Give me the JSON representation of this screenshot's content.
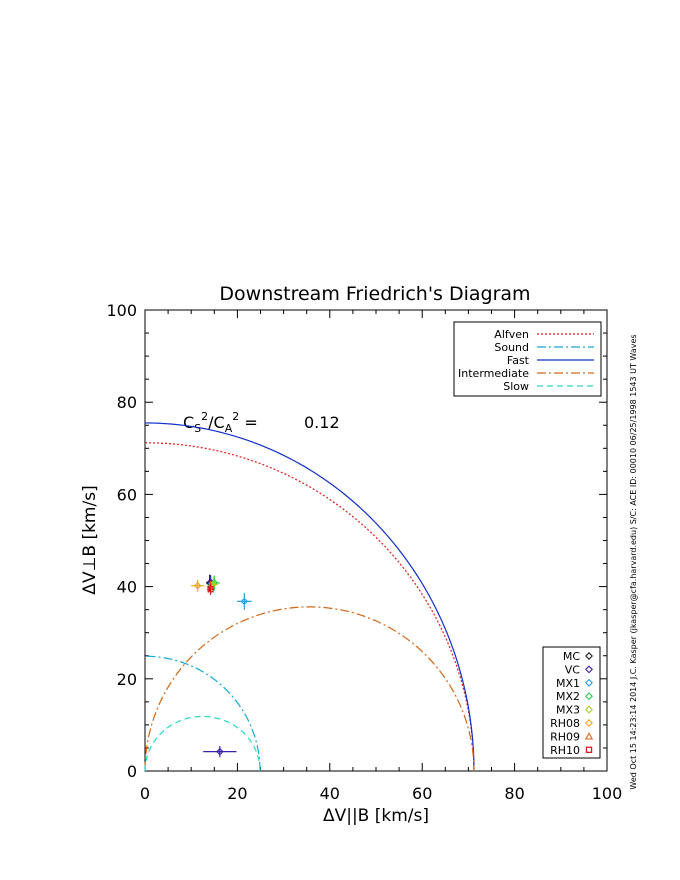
{
  "chart_data": {
    "type": "line",
    "title": "Downstream Friedrich's Diagram",
    "xlabel": "ΔV||B [km/s]",
    "ylabel": "ΔV⊥B [km/s]",
    "xlim": [
      0,
      100
    ],
    "ylim": [
      0,
      100
    ],
    "xticks": [
      "0",
      "20",
      "40",
      "60",
      "80",
      "100"
    ],
    "yticks": [
      "0",
      "20",
      "40",
      "60",
      "80",
      "100"
    ],
    "grid": false,
    "legend_position": "top-right",
    "ratio_label": {
      "text": "C_S^2/C_A^2 =",
      "value": "0.12"
    },
    "side_note": "Wed Oct 15 14:23:14 2014   J.C. Kasper (jkasper@cfa.harvard.edu)   S/C: ACE  ID: 00010 06/25/1998   1543 UT Waves",
    "params": {
      "alfven_speed_kms": 71.2,
      "sound_speed_kms": 24.9
    },
    "curves": [
      {
        "name": "Alfven",
        "color": "#e01c1c",
        "dash": "2,2"
      },
      {
        "name": "Sound",
        "color": "#14a8d8",
        "dash": "9,3,2,3"
      },
      {
        "name": "Fast",
        "color": "#1030c8",
        "dash": ""
      },
      {
        "name": "Intermediate",
        "color": "#d26818",
        "dash": "9,3,2,3"
      },
      {
        "name": "Slow",
        "color": "#28d8c4",
        "dash": "6,4"
      }
    ],
    "method_legend": [
      {
        "name": "MC",
        "color": "#202020",
        "symbol": "diamond"
      },
      {
        "name": "VC",
        "color": "#3a20a8",
        "symbol": "diamond"
      },
      {
        "name": "MX1",
        "color": "#24a0e0",
        "symbol": "diamond"
      },
      {
        "name": "MX2",
        "color": "#20c850",
        "symbol": "diamond"
      },
      {
        "name": "MX3",
        "color": "#a8d020",
        "symbol": "diamond"
      },
      {
        "name": "RH08",
        "color": "#f0a818",
        "symbol": "diamond"
      },
      {
        "name": "RH09",
        "color": "#e06818",
        "symbol": "triangle"
      },
      {
        "name": "RH10",
        "color": "#d82020",
        "symbol": "square"
      }
    ],
    "points": [
      {
        "x": 14.0,
        "y": 40.8,
        "xerr": 0.8,
        "yerr": 1.8,
        "color": "#202020",
        "symbol": "diamond"
      },
      {
        "x": 14.2,
        "y": 41.0,
        "xerr": 0.6,
        "yerr": 1.5,
        "color": "#3a20a8",
        "symbol": "diamond"
      },
      {
        "x": 21.5,
        "y": 36.8,
        "xerr": 1.6,
        "yerr": 1.8,
        "color": "#24a0e0",
        "symbol": "diamond"
      },
      {
        "x": 15.0,
        "y": 40.8,
        "xerr": 1.2,
        "yerr": 1.6,
        "color": "#20c850",
        "symbol": "diamond"
      },
      {
        "x": 14.8,
        "y": 40.5,
        "xerr": 1.0,
        "yerr": 1.4,
        "color": "#a8d020",
        "symbol": "diamond"
      },
      {
        "x": 11.4,
        "y": 40.2,
        "xerr": 1.4,
        "yerr": 1.3,
        "color": "#f0a818",
        "symbol": "diamond"
      },
      {
        "x": 14.2,
        "y": 40.0,
        "xerr": 0.8,
        "yerr": 1.2,
        "color": "#e06818",
        "symbol": "triangle"
      },
      {
        "x": 14.2,
        "y": 39.4,
        "xerr": 0.7,
        "yerr": 1.2,
        "color": "#d82020",
        "symbol": "square"
      },
      {
        "x": 16.2,
        "y": 4.2,
        "xerr": 3.6,
        "yerr": 1.2,
        "color": "#3a20a8",
        "symbol": "diamond"
      }
    ]
  }
}
